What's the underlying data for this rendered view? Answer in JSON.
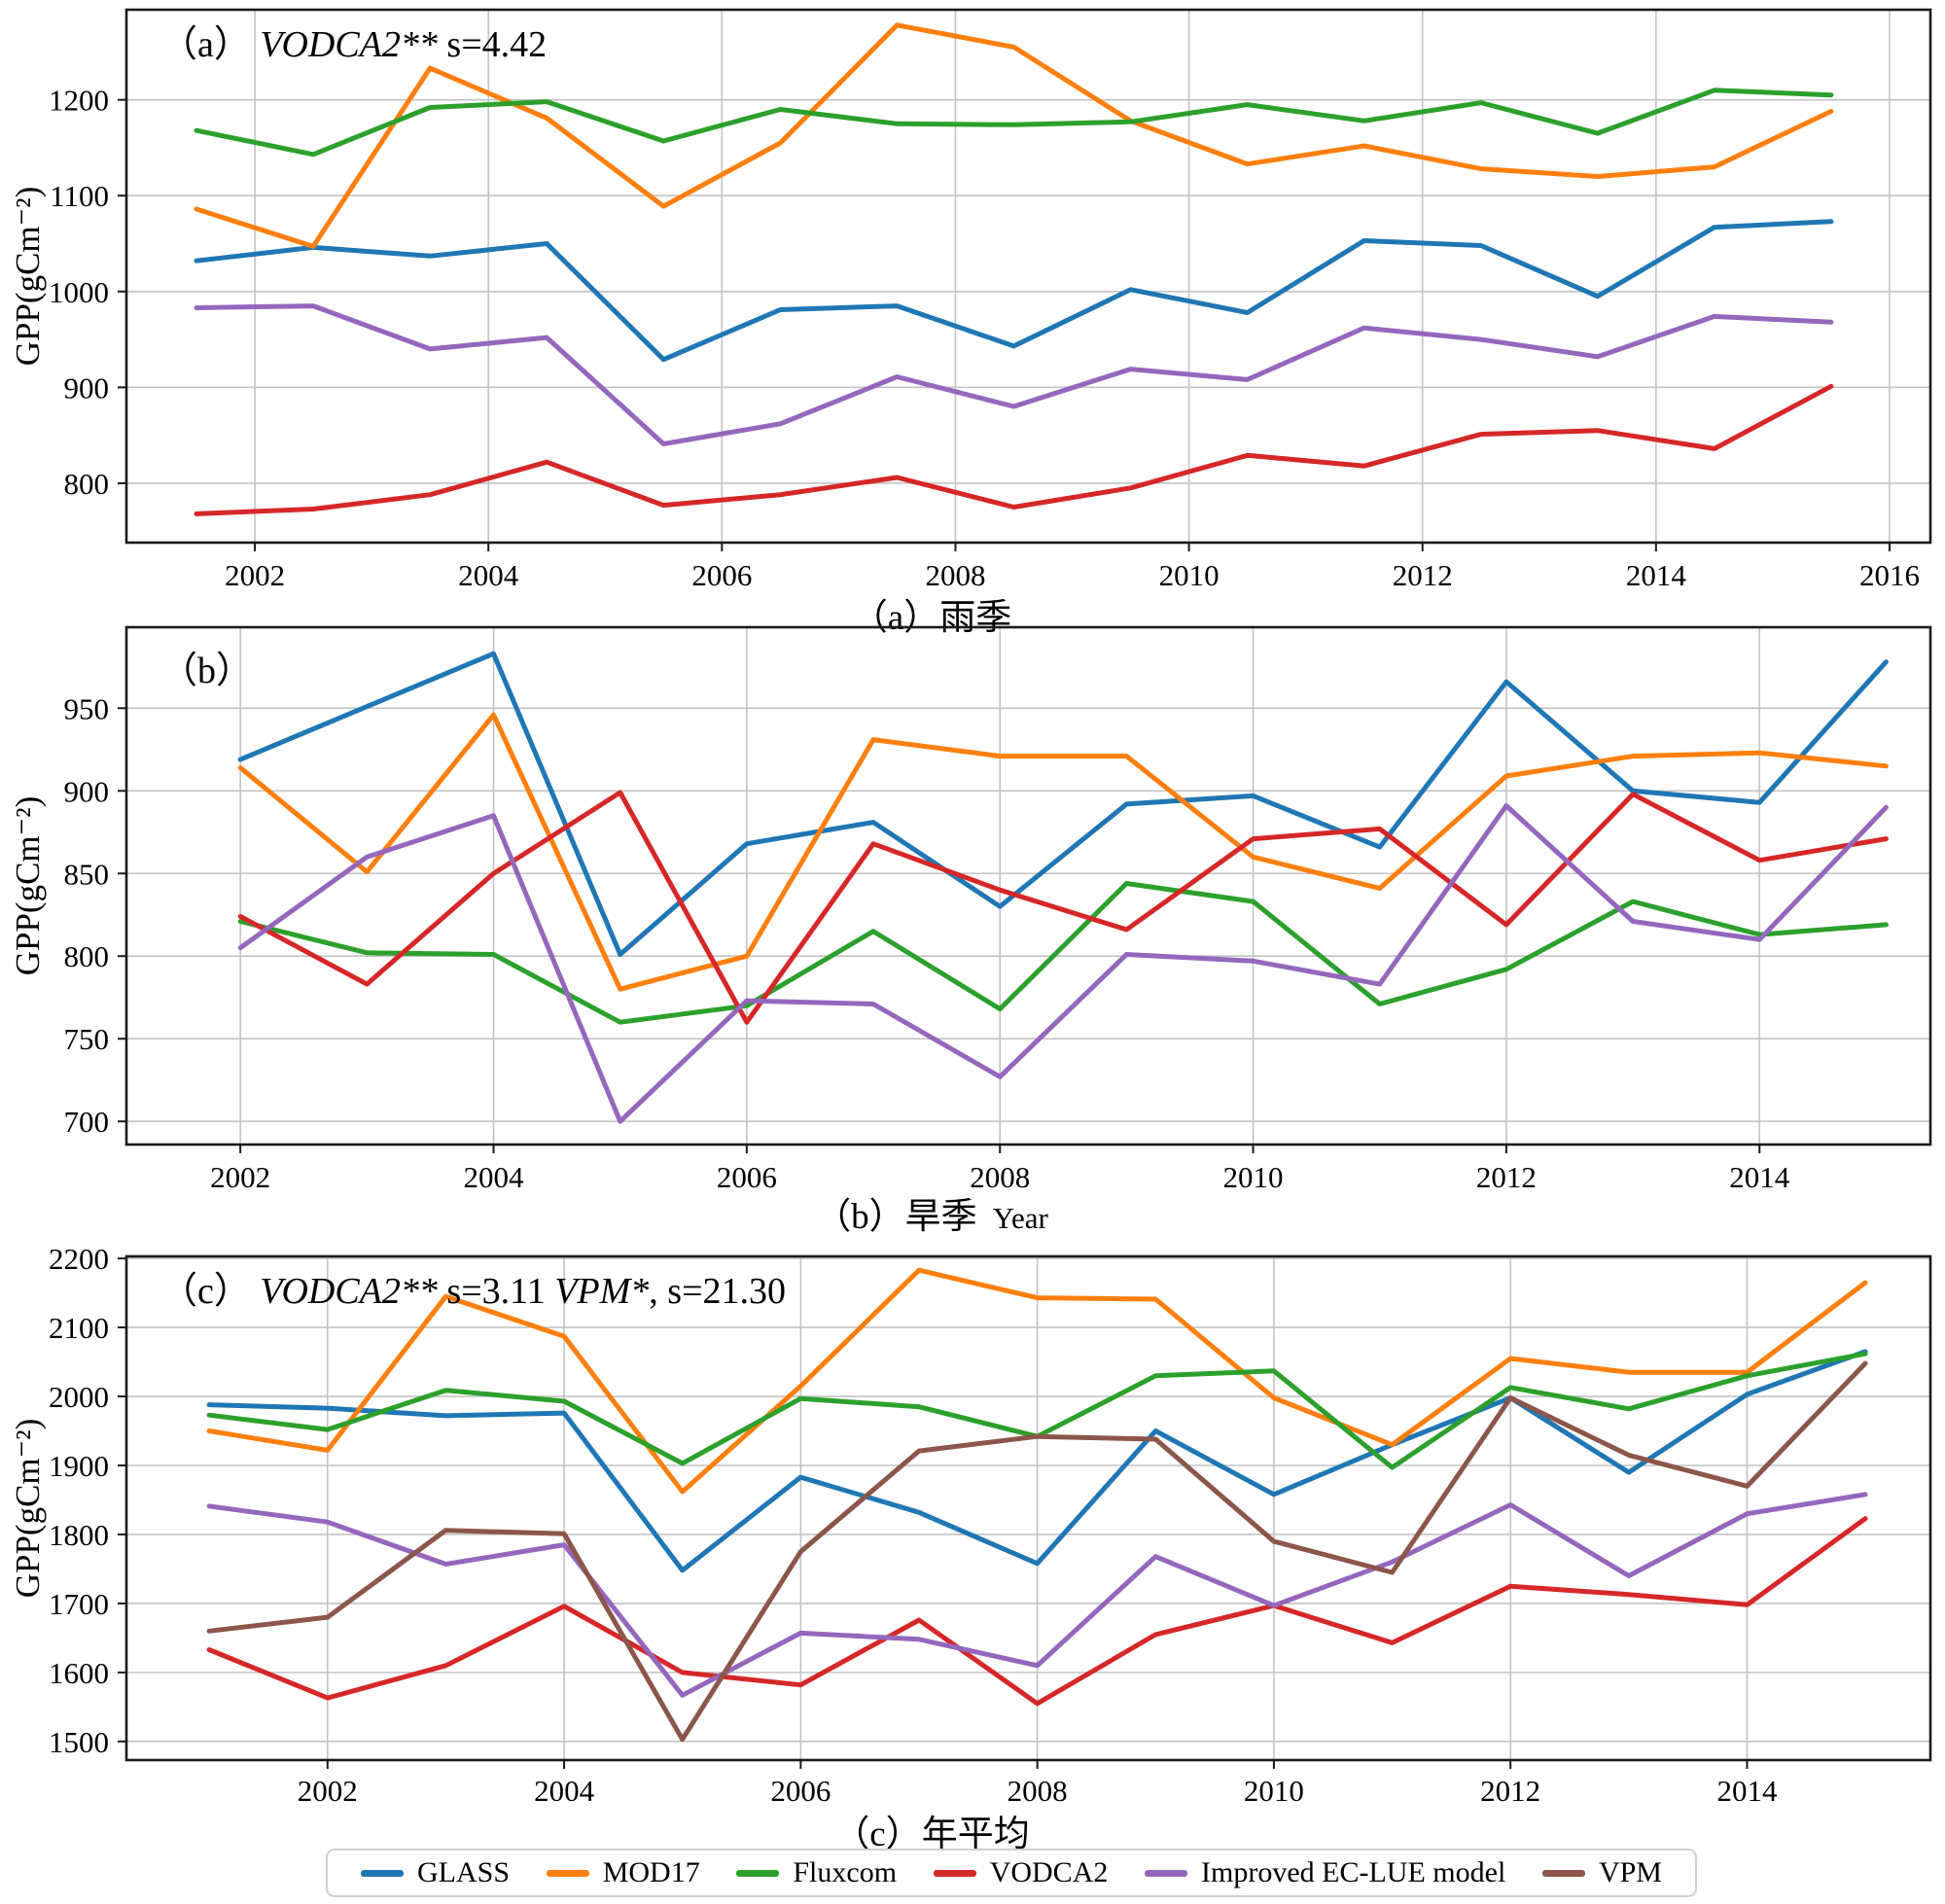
{
  "figure": {
    "background": "#ffffff",
    "grid_color": "#c3c3c3",
    "spine_color": "#1a1a1a",
    "ylabel": "GPP(gCm⁻²)"
  },
  "legend": {
    "position": "bottom",
    "items": [
      {
        "label": "GLASS",
        "color": "#1f77b4"
      },
      {
        "label": "MOD17",
        "color": "#ff7f0e"
      },
      {
        "label": "Fluxcom",
        "color": "#2ca02c"
      },
      {
        "label": "VODCA2",
        "color": "#d62728"
      },
      {
        "label": "Improved EC-LUE model",
        "color": "#9467bd"
      },
      {
        "label": "VPM",
        "color": "#8c564b"
      }
    ]
  },
  "chart_data": [
    {
      "type": "line",
      "panel": "a",
      "title_parts": [
        {
          "text": "（a）  ",
          "italic": false
        },
        {
          "text": "VODCA2**",
          "italic": true
        },
        {
          "text": " s=4.42",
          "italic": false
        }
      ],
      "caption": "（a）雨季",
      "xlabel": "",
      "ylabel": "GPP(gCm⁻²)",
      "grid": true,
      "x_range": [
        2000.9,
        2016.35
      ],
      "y_range": [
        738,
        1294
      ],
      "x_ticks": [
        2002,
        2004,
        2006,
        2008,
        2010,
        2012,
        2014,
        2016
      ],
      "y_ticks": [
        800,
        900,
        1000,
        1100,
        1200
      ],
      "x": [
        2001.5,
        2002.5,
        2003.5,
        2004.5,
        2005.5,
        2006.5,
        2007.5,
        2008.5,
        2009.5,
        2010.5,
        2011.5,
        2012.5,
        2013.5,
        2014.5,
        2015.5
      ],
      "series": [
        {
          "name": "GLASS",
          "color": "#1f77b4",
          "values": [
            1032,
            1046,
            1037,
            1050,
            929,
            981,
            985,
            943,
            1002,
            978,
            1053,
            1048,
            995,
            1067,
            1073
          ]
        },
        {
          "name": "MOD17",
          "color": "#ff7f0e",
          "values": [
            1086,
            1047,
            1233,
            1181,
            1089,
            1155,
            1278,
            1255,
            1178,
            1133,
            1152,
            1128,
            1120,
            1130,
            1188
          ]
        },
        {
          "name": "Fluxcom",
          "color": "#2ca02c",
          "values": [
            1168,
            1143,
            1192,
            1198,
            1157,
            1190,
            1175,
            1174,
            1177,
            1195,
            1178,
            1197,
            1165,
            1210,
            1205
          ]
        },
        {
          "name": "VODCA2",
          "color": "#d62728",
          "values": [
            768,
            773,
            788,
            822,
            777,
            788,
            806,
            775,
            795,
            829,
            818,
            851,
            855,
            836,
            901
          ]
        },
        {
          "name": "Improved EC-LUE model",
          "color": "#9467bd",
          "values": [
            983,
            985,
            940,
            952,
            841,
            862,
            911,
            880,
            919,
            908,
            962,
            950,
            932,
            974,
            968
          ]
        }
      ]
    },
    {
      "type": "line",
      "panel": "b",
      "title_parts": [
        {
          "text": "（b）",
          "italic": false
        }
      ],
      "caption": "（b）旱季",
      "xlabel": "Year",
      "ylabel": "GPP(gCm⁻²)",
      "grid": true,
      "x_range": [
        2001.1,
        2015.35
      ],
      "y_range": [
        686,
        999
      ],
      "x_ticks": [
        2002,
        2004,
        2006,
        2008,
        2010,
        2012,
        2014
      ],
      "y_ticks": [
        700,
        750,
        800,
        850,
        900,
        950
      ],
      "x": [
        2002,
        2003,
        2004,
        2005,
        2006,
        2007,
        2008,
        2009,
        2010,
        2011,
        2012,
        2013,
        2014,
        2015
      ],
      "series": [
        {
          "name": "GLASS",
          "color": "#1f77b4",
          "values": [
            919,
            951,
            983,
            801,
            868,
            881,
            830,
            892,
            897,
            866,
            966,
            900,
            893,
            978
          ]
        },
        {
          "name": "MOD17",
          "color": "#ff7f0e",
          "values": [
            914,
            851,
            946,
            780,
            800,
            931,
            921,
            921,
            860,
            841,
            909,
            921,
            923,
            915
          ]
        },
        {
          "name": "Fluxcom",
          "color": "#2ca02c",
          "values": [
            821,
            802,
            801,
            760,
            770,
            815,
            768,
            844,
            833,
            771,
            792,
            833,
            813,
            819
          ]
        },
        {
          "name": "VODCA2",
          "color": "#d62728",
          "values": [
            824,
            783,
            850,
            899,
            760,
            868,
            840,
            816,
            871,
            877,
            819,
            898,
            858,
            871
          ]
        },
        {
          "name": "Improved EC-LUE model",
          "color": "#9467bd",
          "values": [
            805,
            860,
            885,
            700,
            773,
            771,
            727,
            801,
            797,
            783,
            891,
            821,
            810,
            890
          ]
        }
      ]
    },
    {
      "type": "line",
      "panel": "c",
      "title_parts": [
        {
          "text": "（c）  ",
          "italic": false
        },
        {
          "text": "VODCA2**",
          "italic": true
        },
        {
          "text": " s=3.11    ",
          "italic": false
        },
        {
          "text": "VPM*",
          "italic": true
        },
        {
          "text": ", s=21.30",
          "italic": false
        }
      ],
      "caption": "（c）年平均",
      "xlabel": "",
      "ylabel": "GPP(gCm⁻²)",
      "grid": true,
      "x_range": [
        2000.3,
        2015.55
      ],
      "y_range": [
        1473,
        2203
      ],
      "x_ticks": [
        2002,
        2004,
        2006,
        2008,
        2010,
        2012,
        2014
      ],
      "y_ticks": [
        1500,
        1600,
        1700,
        1800,
        1900,
        2000,
        2100,
        2200
      ],
      "x": [
        2001,
        2002,
        2003,
        2004,
        2005,
        2006,
        2007,
        2008,
        2009,
        2010,
        2011,
        2012,
        2013,
        2014,
        2015
      ],
      "series": [
        {
          "name": "GLASS",
          "color": "#1f77b4",
          "values": [
            1988,
            1983,
            1972,
            1976,
            1748,
            1883,
            1832,
            1758,
            1950,
            1858,
            1930,
            1998,
            1890,
            2003,
            2065
          ]
        },
        {
          "name": "MOD17",
          "color": "#ff7f0e",
          "values": [
            1950,
            1922,
            2145,
            2087,
            1862,
            2015,
            2183,
            2143,
            2141,
            1998,
            1930,
            2055,
            2035,
            2035,
            2165
          ]
        },
        {
          "name": "Fluxcom",
          "color": "#2ca02c",
          "values": [
            1973,
            1952,
            2009,
            1993,
            1903,
            1997,
            1985,
            1942,
            2030,
            2037,
            1897,
            2013,
            1982,
            2030,
            2062
          ]
        },
        {
          "name": "VODCA2",
          "color": "#d62728",
          "values": [
            1633,
            1563,
            1610,
            1696,
            1600,
            1582,
            1676,
            1555,
            1655,
            1697,
            1643,
            1725,
            1713,
            1698,
            1823
          ]
        },
        {
          "name": "Improved EC-LUE model",
          "color": "#9467bd",
          "values": [
            1841,
            1818,
            1757,
            1785,
            1567,
            1657,
            1648,
            1610,
            1768,
            1697,
            1760,
            1843,
            1740,
            1830,
            1858
          ]
        },
        {
          "name": "VPM",
          "color": "#8c564b",
          "values": [
            1660,
            1680,
            1806,
            1801,
            1503,
            1775,
            1921,
            1942,
            1938,
            1790,
            1745,
            1998,
            1915,
            1870,
            2048
          ]
        }
      ]
    }
  ]
}
